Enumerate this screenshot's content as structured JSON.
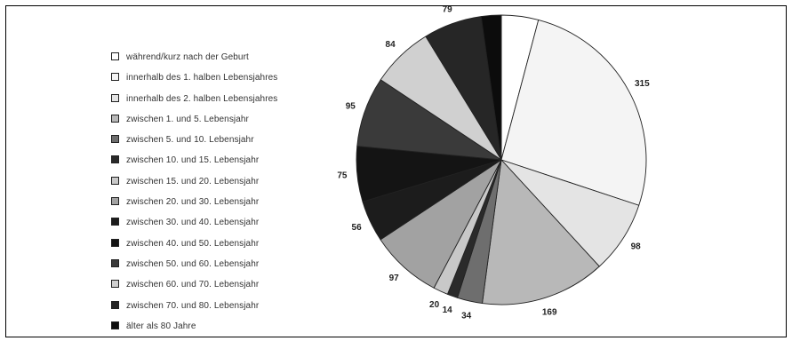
{
  "chart_data": {
    "type": "pie",
    "categories": [
      "während/kurz nach der Geburt",
      "innerhalb des 1. halben Lebensjahres",
      "innerhalb des 2. halben Lebensjahres",
      "zwischen 1. und 5. Lebensjahr",
      "zwischen 5. und 10. Lebensjahr",
      "zwischen 10. und 15. Lebensjahr",
      "zwischen 15. und 20. Lebensjahr",
      "zwischen 20. und 30. Lebensjahr",
      "zwischen 30. und 40. Lebensjahr",
      "zwischen 40. und 50. Lebensjahr",
      "zwischen 50. und 60. Lebensjahr",
      "zwischen 60. und 70. Lebensjahr",
      "zwischen 70. und 80. Lebensjahr",
      "älter als 80 Jahre"
    ],
    "values": [
      50,
      315,
      98,
      169,
      34,
      14,
      20,
      97,
      56,
      75,
      95,
      84,
      79,
      27
    ],
    "colors": [
      "#ffffff",
      "#f4f4f4",
      "#e4e4e4",
      "#b8b8b8",
      "#6e6e6e",
      "#2a2a2a",
      "#c8c8c8",
      "#a2a2a2",
      "#1c1c1c",
      "#141414",
      "#3a3a3a",
      "#d0d0d0",
      "#262626",
      "#0c0c0c"
    ],
    "slice_outline_color": "#222222",
    "legend_placement": "left",
    "title": "",
    "start_angle_deg": 0,
    "direction": "clockwise"
  }
}
